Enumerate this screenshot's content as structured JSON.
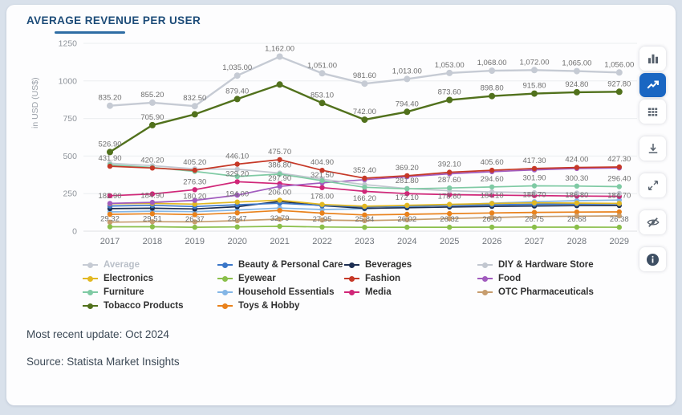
{
  "header": {
    "title": "AVERAGE REVENUE PER USER"
  },
  "chart_data": {
    "type": "line",
    "x": [
      "2017",
      "2018",
      "2019",
      "2020",
      "2021",
      "2022",
      "2023",
      "2024",
      "2025",
      "2026",
      "2027",
      "2028",
      "2029"
    ],
    "ylabel": "in USD (US$)",
    "ylim": [
      0,
      1250
    ],
    "yticks": [
      0,
      250,
      500,
      750,
      1000,
      1250
    ],
    "grid": "horizontal",
    "legend_position": "bottom",
    "series": [
      {
        "id": "household",
        "name": "Household Essentials",
        "color": "#84b6e6",
        "values": [
          128,
          133,
          130,
          141,
          154,
          144,
          149,
          162,
          175,
          186,
          196,
          203,
          207
        ],
        "labels": [
          null,
          null,
          null,
          null,
          null,
          null,
          null,
          null,
          null,
          null,
          null,
          null,
          null
        ]
      },
      {
        "id": "toys",
        "name": "Toys & Hobby",
        "color": "#e9821c",
        "values": [
          112,
          116,
          110,
          122,
          138,
          120,
          108,
          112,
          117,
          121,
          125,
          127,
          128
        ],
        "labels": [
          null,
          null,
          null,
          null,
          null,
          null,
          null,
          null,
          null,
          null,
          null,
          null,
          null
        ]
      },
      {
        "id": "otc",
        "name": "OTC Pharmaceuticals",
        "color": "#c79d6e",
        "values": [
          60,
          63,
          62,
          70,
          80,
          74,
          70,
          76,
          84,
          91,
          97,
          100,
          102
        ],
        "labels": [
          null,
          null,
          null,
          null,
          null,
          null,
          null,
          null,
          null,
          null,
          null,
          null,
          null
        ]
      },
      {
        "id": "eyewear",
        "name": "Eyewear",
        "color": "#8abf4a",
        "values": [
          29.32,
          29.51,
          26.37,
          28.47,
          32.79,
          27.95,
          25.84,
          26.02,
          26.32,
          26.6,
          26.75,
          26.68,
          26.38
        ],
        "labels": [
          "29.32",
          "29.51",
          "26.37",
          "28.47",
          "32.79",
          "27.95",
          "25.84",
          "26.02",
          "26.32",
          "26.60",
          "26.75",
          "26.68",
          "26.38"
        ]
      },
      {
        "id": "beverages",
        "name": "Beverages",
        "color": "#1c2e52",
        "values": [
          150,
          153,
          148,
          163,
          198,
          170,
          152,
          156,
          161,
          165,
          168,
          170,
          171
        ],
        "labels": [
          null,
          null,
          null,
          null,
          null,
          null,
          null,
          null,
          null,
          null,
          null,
          null,
          null
        ]
      },
      {
        "id": "beauty",
        "name": "Beauty & Personal Care",
        "color": "#3a76c8",
        "values": [
          168,
          172,
          164,
          176,
          186,
          172,
          162,
          168,
          172,
          176,
          179,
          181,
          182
        ],
        "labels": [
          null,
          null,
          null,
          null,
          null,
          null,
          null,
          null,
          null,
          null,
          null,
          null,
          null
        ]
      },
      {
        "id": "electronics",
        "name": "Electronics",
        "color": "#e2b822",
        "values": [
          182.9,
          184.9,
          180.2,
          194.0,
          206.0,
          178.0,
          166.2,
          172.1,
          178.6,
          184.1,
          188.7,
          186.8,
          184.7
        ],
        "labels": [
          "182.90",
          "184.90",
          "180.20",
          "194.00",
          "206.00",
          "178.00",
          "166.20",
          "172.10",
          "178.60",
          "184.10",
          "188.70",
          "186.80",
          "184.70"
        ]
      },
      {
        "id": "media",
        "name": "Media",
        "color": "#d02678",
        "values": [
          236,
          248,
          276.3,
          329.2,
          316,
          290,
          265,
          250,
          243,
          240,
          237,
          234,
          232
        ],
        "labels": [
          null,
          null,
          "276.30",
          "329.20",
          null,
          null,
          null,
          null,
          null,
          null,
          null,
          null,
          null
        ]
      },
      {
        "id": "food",
        "name": "Food",
        "color": "#a15bbe",
        "values": [
          185,
          192,
          205,
          240,
          297.9,
          321.5,
          343,
          362,
          382,
          396,
          408,
          417,
          421
        ],
        "labels": [
          null,
          null,
          null,
          null,
          "297.90",
          "321.50",
          null,
          null,
          null,
          null,
          null,
          null,
          null
        ]
      },
      {
        "id": "diy",
        "name": "DIY & Hardware Store",
        "color": "#c2c7d0",
        "values": [
          452,
          436,
          415,
          412,
          386.8,
          346,
          310,
          284,
          269,
          261,
          256,
          253,
          251
        ],
        "labels": [
          null,
          null,
          null,
          null,
          "386.80",
          null,
          null,
          null,
          null,
          null,
          null,
          null,
          null
        ]
      },
      {
        "id": "furniture",
        "name": "Furniture",
        "color": "#7fcaa4",
        "values": [
          442,
          424,
          398,
          364,
          380,
          336,
          292,
          281.8,
          287.6,
          294.6,
          301.9,
          300.3,
          296.4
        ],
        "labels": [
          null,
          null,
          null,
          null,
          null,
          null,
          null,
          "281.80",
          "287.60",
          "294.60",
          "301.90",
          "300.30",
          "296.40"
        ]
      },
      {
        "id": "fashion",
        "name": "Fashion",
        "color": "#c63827",
        "values": [
          431.9,
          420.2,
          405.2,
          446.1,
          475.7,
          404.9,
          352.4,
          369.2,
          392.1,
          405.6,
          417.3,
          424.0,
          427.3
        ],
        "labels": [
          "431.90",
          "420.20",
          "405.20",
          "446.10",
          "475.70",
          "404.90",
          "352.40",
          "369.20",
          "392.10",
          "405.60",
          "417.30",
          "424.00",
          "427.30"
        ]
      },
      {
        "id": "tobacco",
        "name": "Tobacco Products",
        "color": "#51711c",
        "values": [
          526.9,
          705.9,
          778,
          879.4,
          976,
          853.1,
          742,
          794.4,
          873.6,
          898.8,
          915.8,
          924.8,
          927.8
        ],
        "labels": [
          "526.90",
          "705.90",
          null,
          "879.40",
          null,
          "853.10",
          "742.00",
          "794.40",
          "873.60",
          "898.80",
          "915.80",
          "924.80",
          "927.80"
        ]
      },
      {
        "id": "average",
        "name": "Average",
        "color": "#c6cbd4",
        "values": [
          835.2,
          855.2,
          832.5,
          1035,
          1162,
          1051,
          981.6,
          1013,
          1053,
          1068,
          1072,
          1065,
          1056
        ],
        "labels": [
          "835.20",
          "855.20",
          "832.50",
          "1,035.00",
          "1,162.00",
          "1,051.00",
          "981.60",
          "1,013.00",
          "1,053.00",
          "1,068.00",
          "1,072.00",
          "1,065.00",
          "1,056.00"
        ]
      }
    ]
  },
  "legend": {
    "items": [
      {
        "label": "Average",
        "color": "#c6cbd4",
        "muted": true
      },
      {
        "label": "Beauty & Personal Care",
        "color": "#3a76c8",
        "muted": false
      },
      {
        "label": "Beverages",
        "color": "#1c2e52",
        "muted": false
      },
      {
        "label": "DIY & Hardware Store",
        "color": "#c2c7d0",
        "muted": false
      },
      {
        "label": "Electronics",
        "color": "#e2b822",
        "muted": false
      },
      {
        "label": "Eyewear",
        "color": "#8abf4a",
        "muted": false
      },
      {
        "label": "Fashion",
        "color": "#c63827",
        "muted": false
      },
      {
        "label": "Food",
        "color": "#a15bbe",
        "muted": false
      },
      {
        "label": "Furniture",
        "color": "#7fcaa4",
        "muted": false
      },
      {
        "label": "Household Essentials",
        "color": "#84b6e6",
        "muted": false
      },
      {
        "label": "Media",
        "color": "#d02678",
        "muted": false
      },
      {
        "label": "OTC Pharmaceuticals",
        "color": "#c79d6e",
        "muted": false
      },
      {
        "label": "Tobacco Products",
        "color": "#51711c",
        "muted": false
      },
      {
        "label": "Toys & Hobby",
        "color": "#e9821c",
        "muted": false
      }
    ]
  },
  "toolbar": {
    "buttons": [
      {
        "icon": "bar-chart",
        "active": false,
        "gap": false
      },
      {
        "icon": "line-chart",
        "active": true,
        "gap": false
      },
      {
        "icon": "table",
        "active": false,
        "gap": false
      },
      {
        "icon": "download",
        "active": false,
        "gap": true
      },
      {
        "icon": "fullscreen",
        "active": false,
        "gap": true
      },
      {
        "icon": "hide-labels",
        "active": false,
        "gap": true
      },
      {
        "icon": "info",
        "active": false,
        "gap": true
      }
    ],
    "accent_color": "#1a66c2"
  },
  "footer": {
    "updated": "Most recent update: Oct 2024",
    "source": "Source: Statista Market Insights"
  }
}
